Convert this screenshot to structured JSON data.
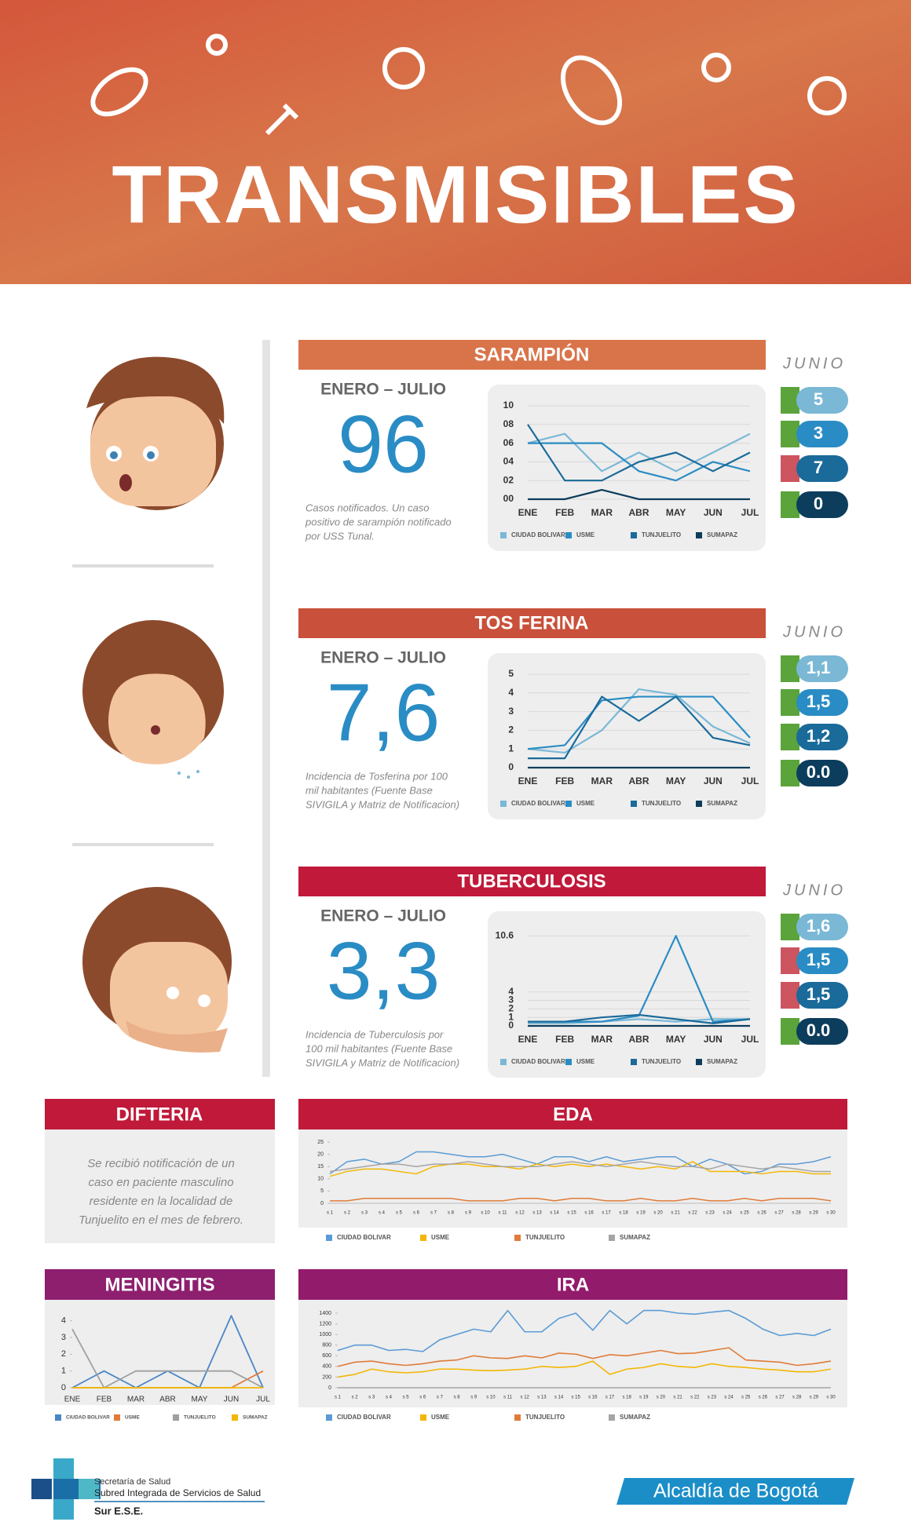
{
  "header": {
    "title": "TRANSMISIBLES"
  },
  "panels": [
    {
      "title": "SARAMPIÓN",
      "color": "#d9744a",
      "period": "ENERO – JULIO",
      "total": "96",
      "note": [
        "Casos notificados. Un caso",
        "positivo de sarampión notificado",
        "por USS Tunal."
      ],
      "month_label": "JUNIO",
      "june": [
        {
          "value": "5",
          "flag": "#5ba33b"
        },
        {
          "value": "3",
          "flag": "#5ba33b"
        },
        {
          "value": "7",
          "flag": "#cc5560"
        },
        {
          "value": "0",
          "flag": "#5ba33b"
        }
      ]
    },
    {
      "title": "TOS FERINA",
      "color": "#c9503a",
      "period": "ENERO – JULIO",
      "total": "7,6",
      "note": [
        "Incidencia de Tosferina por 100",
        "mil habitantes (Fuente Base",
        "SIVIGILA y Matriz de Notificacion)"
      ],
      "month_label": "JUNIO",
      "june": [
        {
          "value": "1,1",
          "flag": "#5ba33b"
        },
        {
          "value": "1,5",
          "flag": "#5ba33b"
        },
        {
          "value": "1,2",
          "flag": "#5ba33b"
        },
        {
          "value": "0.0",
          "flag": "#5ba33b"
        }
      ]
    },
    {
      "title": "TUBERCULOSIS",
      "color": "#c0193a",
      "period": "ENERO – JULIO",
      "total": "3,3",
      "note": [
        "Incidencia de Tuberculosis por",
        "100 mil habitantes (Fuente Base",
        "SIVIGILA y Matriz de Notificacion)"
      ],
      "month_label": "JUNIO",
      "june": [
        {
          "value": "1,6",
          "flag": "#5ba33b"
        },
        {
          "value": "1,5",
          "flag": "#cc5560"
        },
        {
          "value": "1,5",
          "flag": "#cc5560"
        },
        {
          "value": "0.0",
          "flag": "#5ba33b"
        }
      ]
    }
  ],
  "difteria": {
    "title": "DIFTERIA",
    "text": [
      "Se recibió notificación de un",
      "caso en paciente masculino",
      "residente en la localidad de",
      "Tunjuelito en el mes de febrero."
    ]
  },
  "chart_data": [
    {
      "type": "line",
      "categories": [
        "ENE",
        "FEB",
        "MAR",
        "ABR",
        "MAY",
        "JUN",
        "JUL"
      ],
      "ylim": [
        0,
        10
      ],
      "yticks": [
        {
          "value": 0,
          "label": "00"
        },
        {
          "value": 2,
          "label": "02"
        },
        {
          "value": 4,
          "label": "04"
        },
        {
          "value": 6,
          "label": "06"
        },
        {
          "value": 8,
          "label": "08"
        },
        10
      ],
      "grid": true,
      "series": [
        {
          "name": "CIUDAD BOLIVAR",
          "color": "#7ab8d6",
          "values": [
            6,
            7,
            3,
            5,
            3,
            5,
            7
          ]
        },
        {
          "name": "USME",
          "color": "#2a8cc4",
          "values": [
            6,
            6,
            6,
            3,
            2,
            4,
            3
          ]
        },
        {
          "name": "TUNJUELITO",
          "color": "#1a6a9a",
          "values": [
            8,
            2,
            2,
            4,
            5,
            3,
            5
          ]
        },
        {
          "name": "SUMAPAZ",
          "color": "#0d3d5c",
          "values": [
            0,
            0,
            1,
            0,
            0,
            0,
            0
          ]
        }
      ]
    },
    {
      "type": "line",
      "categories": [
        "ENE",
        "FEB",
        "MAR",
        "ABR",
        "MAY",
        "JUN",
        "JUL"
      ],
      "ylim": [
        0,
        5
      ],
      "yticks": [
        0,
        1,
        2,
        3,
        4,
        5
      ],
      "grid": true,
      "series": [
        {
          "name": "CIUDAD BOLIVAR",
          "color": "#7ab8d6",
          "values": [
            1,
            0.8,
            2,
            4.2,
            3.9,
            2.2,
            1.3
          ]
        },
        {
          "name": "USME",
          "color": "#2a8cc4",
          "values": [
            1,
            1.2,
            3.6,
            3.8,
            3.8,
            3.8,
            1.6
          ]
        },
        {
          "name": "TUNJUELITO",
          "color": "#1a6a9a",
          "values": [
            0.5,
            0.5,
            3.8,
            2.5,
            3.8,
            1.6,
            1.2
          ]
        },
        {
          "name": "SUMAPAZ",
          "color": "#0d3d5c",
          "values": [
            0,
            0,
            0,
            0,
            0,
            0,
            0
          ]
        }
      ]
    },
    {
      "type": "line",
      "categories": [
        "ENE",
        "FEB",
        "MAR",
        "ABR",
        "MAY",
        "JUN",
        "JUL"
      ],
      "ylim": [
        0,
        11
      ],
      "yticks": [
        0,
        1,
        2,
        3,
        4,
        10.6
      ],
      "grid": true,
      "series": [
        {
          "name": "CIUDAD BOLIVAR",
          "color": "#7ab8d6",
          "values": [
            0.3,
            0.3,
            0.5,
            0.8,
            0.5,
            0.8,
            0.8
          ]
        },
        {
          "name": "USME",
          "color": "#2a8cc4",
          "values": [
            0.5,
            0.5,
            0.5,
            1.2,
            10.6,
            0.5,
            0.8
          ]
        },
        {
          "name": "TUNJUELITO",
          "color": "#1a6a9a",
          "values": [
            0.5,
            0.5,
            1,
            1.3,
            0.8,
            0.3,
            0.8
          ]
        },
        {
          "name": "SUMAPAZ",
          "color": "#0d3d5c",
          "values": [
            0,
            0,
            0,
            0,
            0,
            0,
            0
          ]
        }
      ]
    },
    {
      "type": "line",
      "title": "EDA",
      "title_color": "#c0193a",
      "categories": [
        "s 1",
        "s 2",
        "s 3",
        "s 4",
        "s 5",
        "s 6",
        "s 7",
        "s 8",
        "s 9",
        "s 10",
        "s 11",
        "s 12",
        "s 13",
        "s 14",
        "s 15",
        "s 16",
        "s 17",
        "s 18",
        "s 19",
        "s 20",
        "s 21",
        "s 22",
        "s 23",
        "s 24",
        "s 25",
        "s 26",
        "s 27",
        "s 28",
        "s 29",
        "s 30"
      ],
      "ylim": [
        0,
        25
      ],
      "yticks": [
        0,
        5,
        10,
        15,
        20,
        25
      ],
      "grid": false,
      "series": [
        {
          "name": "CIUDAD BOLIVAR",
          "color": "#5b9bd5",
          "values": [
            12,
            17,
            18,
            16,
            17,
            21,
            21,
            20,
            19,
            19,
            20,
            18,
            16,
            19,
            19,
            17,
            19,
            17,
            18,
            19,
            19,
            15,
            18,
            16,
            12,
            13,
            16,
            16,
            17,
            19
          ]
        },
        {
          "name": "USME",
          "color": "#f2b705",
          "values": [
            11,
            13,
            14,
            14,
            13,
            12,
            15,
            16,
            16,
            15,
            15,
            14,
            16,
            15,
            16,
            15,
            16,
            15,
            14,
            15,
            14,
            17,
            13,
            13,
            13,
            12,
            13,
            13,
            12,
            12
          ]
        },
        {
          "name": "TUNJUELITO",
          "color": "#e07b39",
          "values": [
            1,
            1,
            2,
            2,
            2,
            2,
            2,
            2,
            1,
            1,
            1,
            2,
            2,
            1,
            2,
            2,
            1,
            1,
            2,
            1,
            1,
            2,
            1,
            1,
            2,
            1,
            2,
            2,
            2,
            1
          ]
        },
        {
          "name": "SUMAPAZ",
          "color": "#a5a5a5",
          "values": [
            13,
            14,
            15,
            16,
            16,
            15,
            16,
            16,
            17,
            16,
            15,
            15,
            15,
            16,
            17,
            16,
            15,
            16,
            17,
            16,
            15,
            15,
            14,
            16,
            15,
            14,
            15,
            14,
            13,
            13
          ]
        }
      ]
    },
    {
      "type": "line",
      "title": "MENINGITIS",
      "title_color": "#8e1f6f",
      "categories": [
        "ENE",
        "FEB",
        "MAR",
        "ABR",
        "MAY",
        "JUN",
        "JUL"
      ],
      "ylim": [
        0,
        4.5
      ],
      "yticks": [
        0,
        1,
        2,
        3,
        4
      ],
      "grid": false,
      "series": [
        {
          "name": "CIUDAD BOLIVAR",
          "color": "#4a86c5",
          "values": [
            0,
            1,
            0,
            1,
            0,
            4.3,
            0
          ]
        },
        {
          "name": "USME",
          "color": "#e07b39",
          "values": [
            0,
            0,
            0,
            0,
            0,
            0,
            1
          ]
        },
        {
          "name": "TUNJUELITO",
          "color": "#a0a0a0",
          "values": [
            3.5,
            0,
            1,
            1,
            1,
            1,
            0
          ]
        },
        {
          "name": "SUMAPAZ",
          "color": "#f2b705",
          "values": [
            0,
            0,
            0,
            0,
            0,
            0,
            0
          ]
        }
      ]
    },
    {
      "type": "line",
      "title": "IRA",
      "title_color": "#931b6c",
      "categories": [
        "s 1",
        "s 2",
        "s 3",
        "s 4",
        "s 5",
        "s 6",
        "s 7",
        "s 8",
        "s 9",
        "s 10",
        "s 11",
        "s 12",
        "s 13",
        "s 14",
        "s 15",
        "s 16",
        "s 17",
        "s 18",
        "s 19",
        "s 20",
        "s 21",
        "s 22",
        "s 23",
        "s 24",
        "s 25",
        "s 26",
        "s 27",
        "s 28",
        "s 29",
        "s 30"
      ],
      "ylim": [
        0,
        1400
      ],
      "yticks": [
        0,
        200,
        400,
        600,
        800,
        1000,
        1200,
        1400
      ],
      "grid": false,
      "series": [
        {
          "name": "CIUDAD BOLIVAR",
          "color": "#5b9bd5",
          "values": [
            700,
            800,
            800,
            700,
            720,
            680,
            900,
            1000,
            1100,
            1050,
            1450,
            1050,
            1050,
            1300,
            1400,
            1080,
            1450,
            1200,
            1450,
            1450,
            1400,
            1380,
            1420,
            1450,
            1300,
            1100,
            980,
            1020,
            980,
            1100
          ]
        },
        {
          "name": "USME",
          "color": "#f2b705",
          "values": [
            200,
            250,
            350,
            300,
            280,
            300,
            350,
            350,
            330,
            320,
            330,
            350,
            400,
            380,
            400,
            500,
            250,
            350,
            380,
            450,
            400,
            380,
            450,
            400,
            380,
            350,
            330,
            300,
            300,
            350
          ]
        },
        {
          "name": "TUNJUELITO",
          "color": "#e07b39",
          "values": [
            400,
            480,
            500,
            450,
            420,
            450,
            500,
            520,
            600,
            560,
            550,
            600,
            560,
            650,
            630,
            550,
            620,
            600,
            650,
            700,
            640,
            650,
            700,
            750,
            520,
            500,
            480,
            420,
            450,
            500
          ]
        },
        {
          "name": "SUMAPAZ",
          "color": "#a5a5a5",
          "values": [
            0,
            0,
            0,
            0,
            0,
            0,
            0,
            0,
            0,
            0,
            0,
            0,
            0,
            0,
            0,
            0,
            0,
            0,
            0,
            0,
            0,
            0,
            0,
            0,
            0,
            0,
            0,
            0,
            0,
            0
          ]
        }
      ]
    }
  ],
  "footer": {
    "org": [
      "Secretaría de Salud",
      "Subred Integrada de Servicios de Salud",
      "Sur E.S.E."
    ],
    "city": "Alcaldía de Bogotá"
  }
}
